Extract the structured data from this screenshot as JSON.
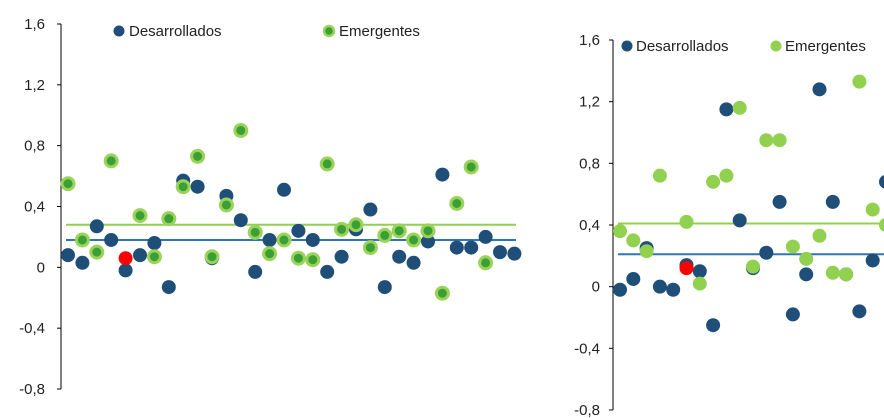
{
  "colors": {
    "desarrollados": "#1f4e79",
    "emergentes_fill": "#3aa035",
    "emergentes_ring": "#9ad25a",
    "highlight": "#ff0000",
    "desarrollados_line": "#2e75b6",
    "emergentes_line": "#92d050",
    "axis": "#000000"
  },
  "chart_data": [
    {
      "type": "scatter",
      "ylim": [
        -0.8,
        1.6
      ],
      "yticks": [
        "1,6",
        "1,2",
        "0,8",
        "0,4",
        "0",
        "-0,4",
        "-0,8"
      ],
      "legend": [
        "Desarrollados",
        "Emergentes"
      ],
      "averages": {
        "Desarrollados": 0.18,
        "Emergentes": 0.28
      },
      "series": [
        {
          "name": "Desarrollados",
          "points": [
            [
              1,
              0.08
            ],
            [
              2,
              0.03
            ],
            [
              3,
              0.27
            ],
            [
              4,
              0.18
            ],
            [
              5,
              -0.02
            ],
            [
              6,
              0.08
            ],
            [
              7,
              0.16
            ],
            [
              8,
              -0.13
            ],
            [
              9,
              0.57
            ],
            [
              10,
              0.53
            ],
            [
              11,
              0.06
            ],
            [
              12,
              0.47
            ],
            [
              13,
              0.31
            ],
            [
              14,
              -0.03
            ],
            [
              15,
              0.18
            ],
            [
              16,
              0.51
            ],
            [
              17,
              0.24
            ],
            [
              18,
              0.18
            ],
            [
              19,
              -0.03
            ],
            [
              20,
              0.07
            ],
            [
              21,
              0.25
            ],
            [
              22,
              0.38
            ],
            [
              23,
              -0.13
            ],
            [
              24,
              0.07
            ],
            [
              25,
              0.03
            ],
            [
              26,
              0.17
            ],
            [
              27,
              0.61
            ],
            [
              28,
              0.13
            ],
            [
              29,
              0.13
            ],
            [
              30,
              0.2
            ],
            [
              31,
              0.1
            ],
            [
              32,
              0.09
            ]
          ]
        },
        {
          "name": "Emergentes",
          "points": [
            [
              1,
              0.55
            ],
            [
              2,
              0.18
            ],
            [
              3,
              0.1
            ],
            [
              4,
              0.7
            ],
            [
              6,
              0.34
            ],
            [
              7,
              0.07
            ],
            [
              8,
              0.32
            ],
            [
              9,
              0.53
            ],
            [
              10,
              0.73
            ],
            [
              11,
              0.07
            ],
            [
              12,
              0.41
            ],
            [
              13,
              0.9
            ],
            [
              14,
              0.23
            ],
            [
              15,
              0.09
            ],
            [
              16,
              0.18
            ],
            [
              17,
              0.06
            ],
            [
              18,
              0.05
            ],
            [
              19,
              0.68
            ],
            [
              20,
              0.25
            ],
            [
              21,
              0.28
            ],
            [
              22,
              0.13
            ],
            [
              23,
              0.21
            ],
            [
              24,
              0.24
            ],
            [
              25,
              0.18
            ],
            [
              26,
              0.24
            ],
            [
              27,
              -0.17
            ],
            [
              28,
              0.42
            ],
            [
              29,
              0.66
            ],
            [
              30,
              0.03
            ]
          ]
        }
      ],
      "highlight_point": [
        5,
        0.06
      ]
    },
    {
      "type": "scatter",
      "ylim": [
        -0.8,
        1.6
      ],
      "yticks": [
        "1,6",
        "1,2",
        "0,8",
        "0,4",
        "0",
        "-0,4",
        "-0,8"
      ],
      "legend": [
        "Desarrollados",
        "Emergentes"
      ],
      "averages": {
        "Desarrollados": 0.21,
        "Emergentes": 0.41
      },
      "series": [
        {
          "name": "Desarrollados",
          "points": [
            [
              1,
              -0.02
            ],
            [
              2,
              0.05
            ],
            [
              3,
              0.25
            ],
            [
              4,
              0.0
            ],
            [
              5,
              -0.02
            ],
            [
              6,
              0.14
            ],
            [
              7,
              0.1
            ],
            [
              8,
              -0.25
            ],
            [
              9,
              1.15
            ],
            [
              10,
              0.43
            ],
            [
              11,
              0.12
            ],
            [
              12,
              0.22
            ],
            [
              13,
              0.55
            ],
            [
              14,
              -0.18
            ],
            [
              15,
              0.08
            ],
            [
              16,
              1.28
            ],
            [
              17,
              0.55
            ],
            [
              18,
              0.08
            ],
            [
              19,
              -0.16
            ],
            [
              20,
              0.17
            ],
            [
              21,
              0.68
            ]
          ]
        },
        {
          "name": "Emergentes",
          "points": [
            [
              1,
              0.36
            ],
            [
              2,
              0.3
            ],
            [
              3,
              0.23
            ],
            [
              4,
              0.72
            ],
            [
              6,
              0.42
            ],
            [
              7,
              0.02
            ],
            [
              8,
              0.68
            ],
            [
              9,
              0.72
            ],
            [
              10,
              1.16
            ],
            [
              11,
              0.13
            ],
            [
              12,
              0.95
            ],
            [
              13,
              0.95
            ],
            [
              14,
              0.26
            ],
            [
              15,
              0.18
            ],
            [
              16,
              0.33
            ],
            [
              17,
              0.09
            ],
            [
              18,
              0.08
            ],
            [
              19,
              1.33
            ],
            [
              20,
              0.5
            ],
            [
              21,
              0.4
            ]
          ]
        }
      ],
      "highlight_point": [
        6,
        0.12
      ]
    }
  ]
}
